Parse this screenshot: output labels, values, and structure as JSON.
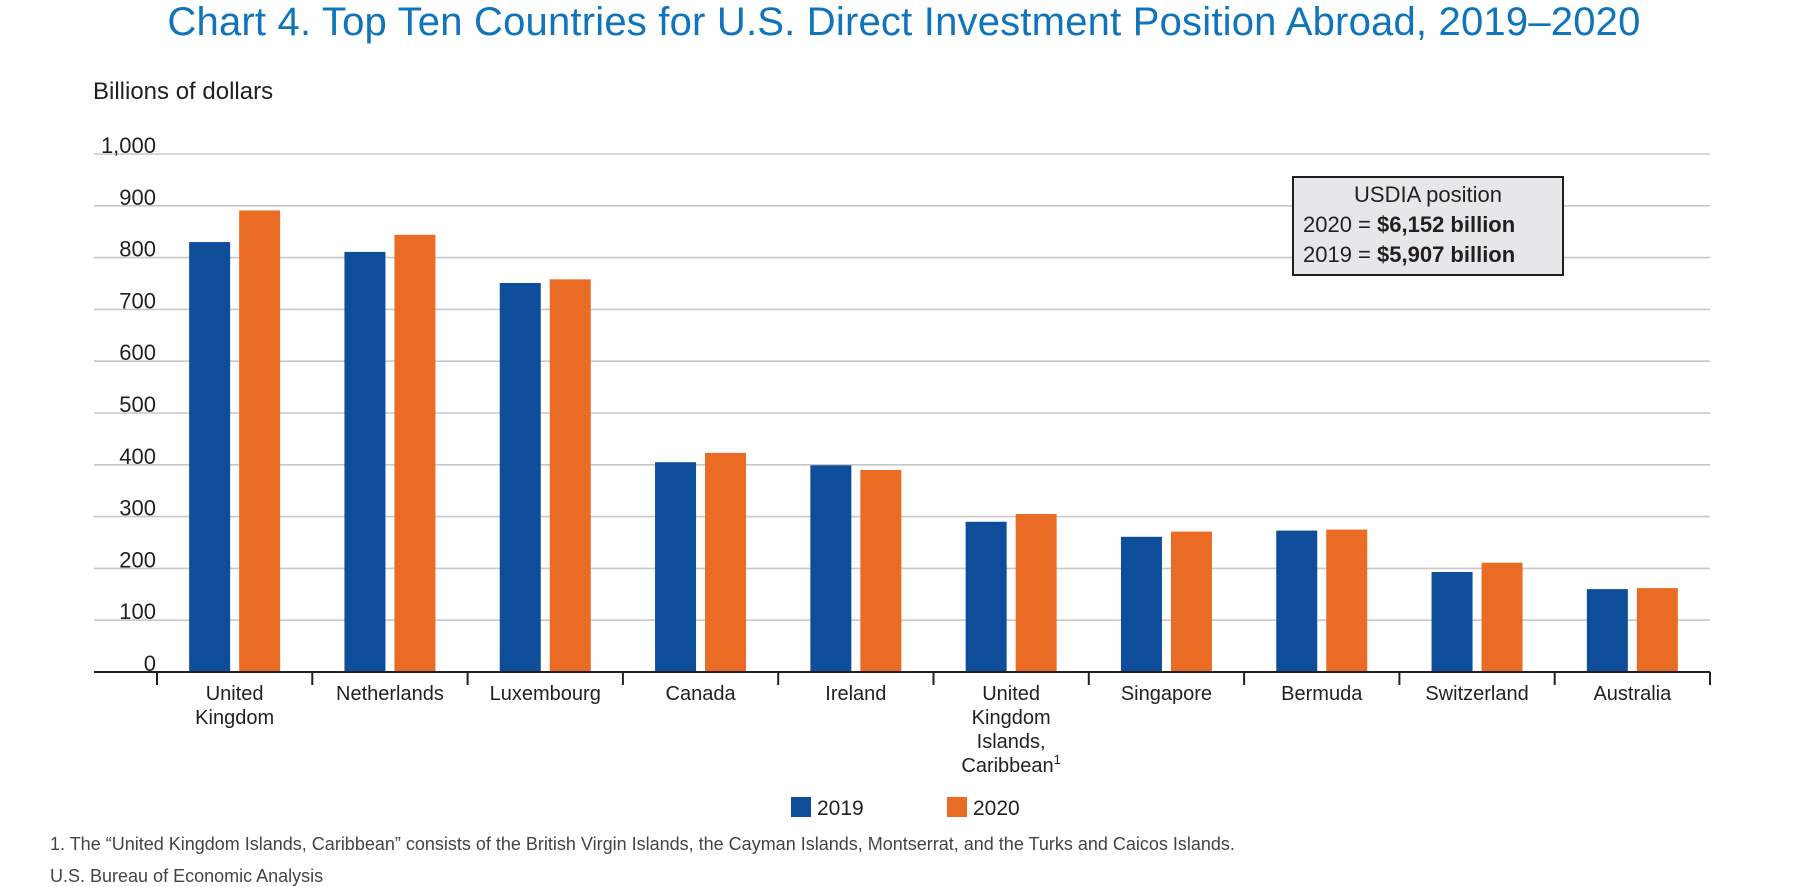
{
  "title": "Chart 4. Top Ten Countries for U.S. Direct Investment Position Abroad, 2019–2020",
  "footnote": "1. The “United Kingdom Islands, Caribbean” consists of the British Virgin Islands, the Cayman Islands, Montserrat, and the Turks and Caicos Islands.",
  "source": "U.S. Bureau of Economic Analysis",
  "chart_data": {
    "type": "bar",
    "title": "Chart 4. Top Ten Countries for U.S. Direct Investment Position Abroad, 2019–2020",
    "ylabel": "Billions of dollars",
    "xlabel": "",
    "ylim": [
      0,
      1000
    ],
    "yticks": [
      0,
      100,
      200,
      300,
      400,
      500,
      600,
      700,
      800,
      900,
      1000
    ],
    "ytick_labels": [
      "0",
      "100",
      "200",
      "300",
      "400",
      "500",
      "600",
      "700",
      "800",
      "900",
      "1,000"
    ],
    "grid": true,
    "legend_position": "bottom",
    "categories": [
      [
        "United",
        "Kingdom"
      ],
      [
        "Netherlands"
      ],
      [
        "Luxembourg"
      ],
      [
        "Canada"
      ],
      [
        "Ireland"
      ],
      [
        "United",
        "Kingdom",
        "Islands,",
        "Caribbean"
      ],
      [
        "Singapore"
      ],
      [
        "Bermuda"
      ],
      [
        "Switzerland"
      ],
      [
        "Australia"
      ]
    ],
    "superscript_marks": [
      "",
      "",
      "",
      "",
      "",
      "1",
      "",
      "",
      "",
      ""
    ],
    "series": [
      {
        "name": "2019",
        "color": "#0e4d99",
        "values": [
          830,
          811,
          751,
          405,
          399,
          290,
          261,
          273,
          193,
          160
        ]
      },
      {
        "name": "2020",
        "color": "#ea6c24",
        "values": [
          891,
          844,
          758,
          423,
          390,
          305,
          271,
          275,
          211,
          162
        ]
      }
    ],
    "annotation": {
      "heading": "USDIA position",
      "lines": [
        {
          "prefix": "2020 = ",
          "value": "$6,152 billion"
        },
        {
          "prefix": "2019 = ",
          "value": "$5,907 billion"
        }
      ]
    }
  }
}
